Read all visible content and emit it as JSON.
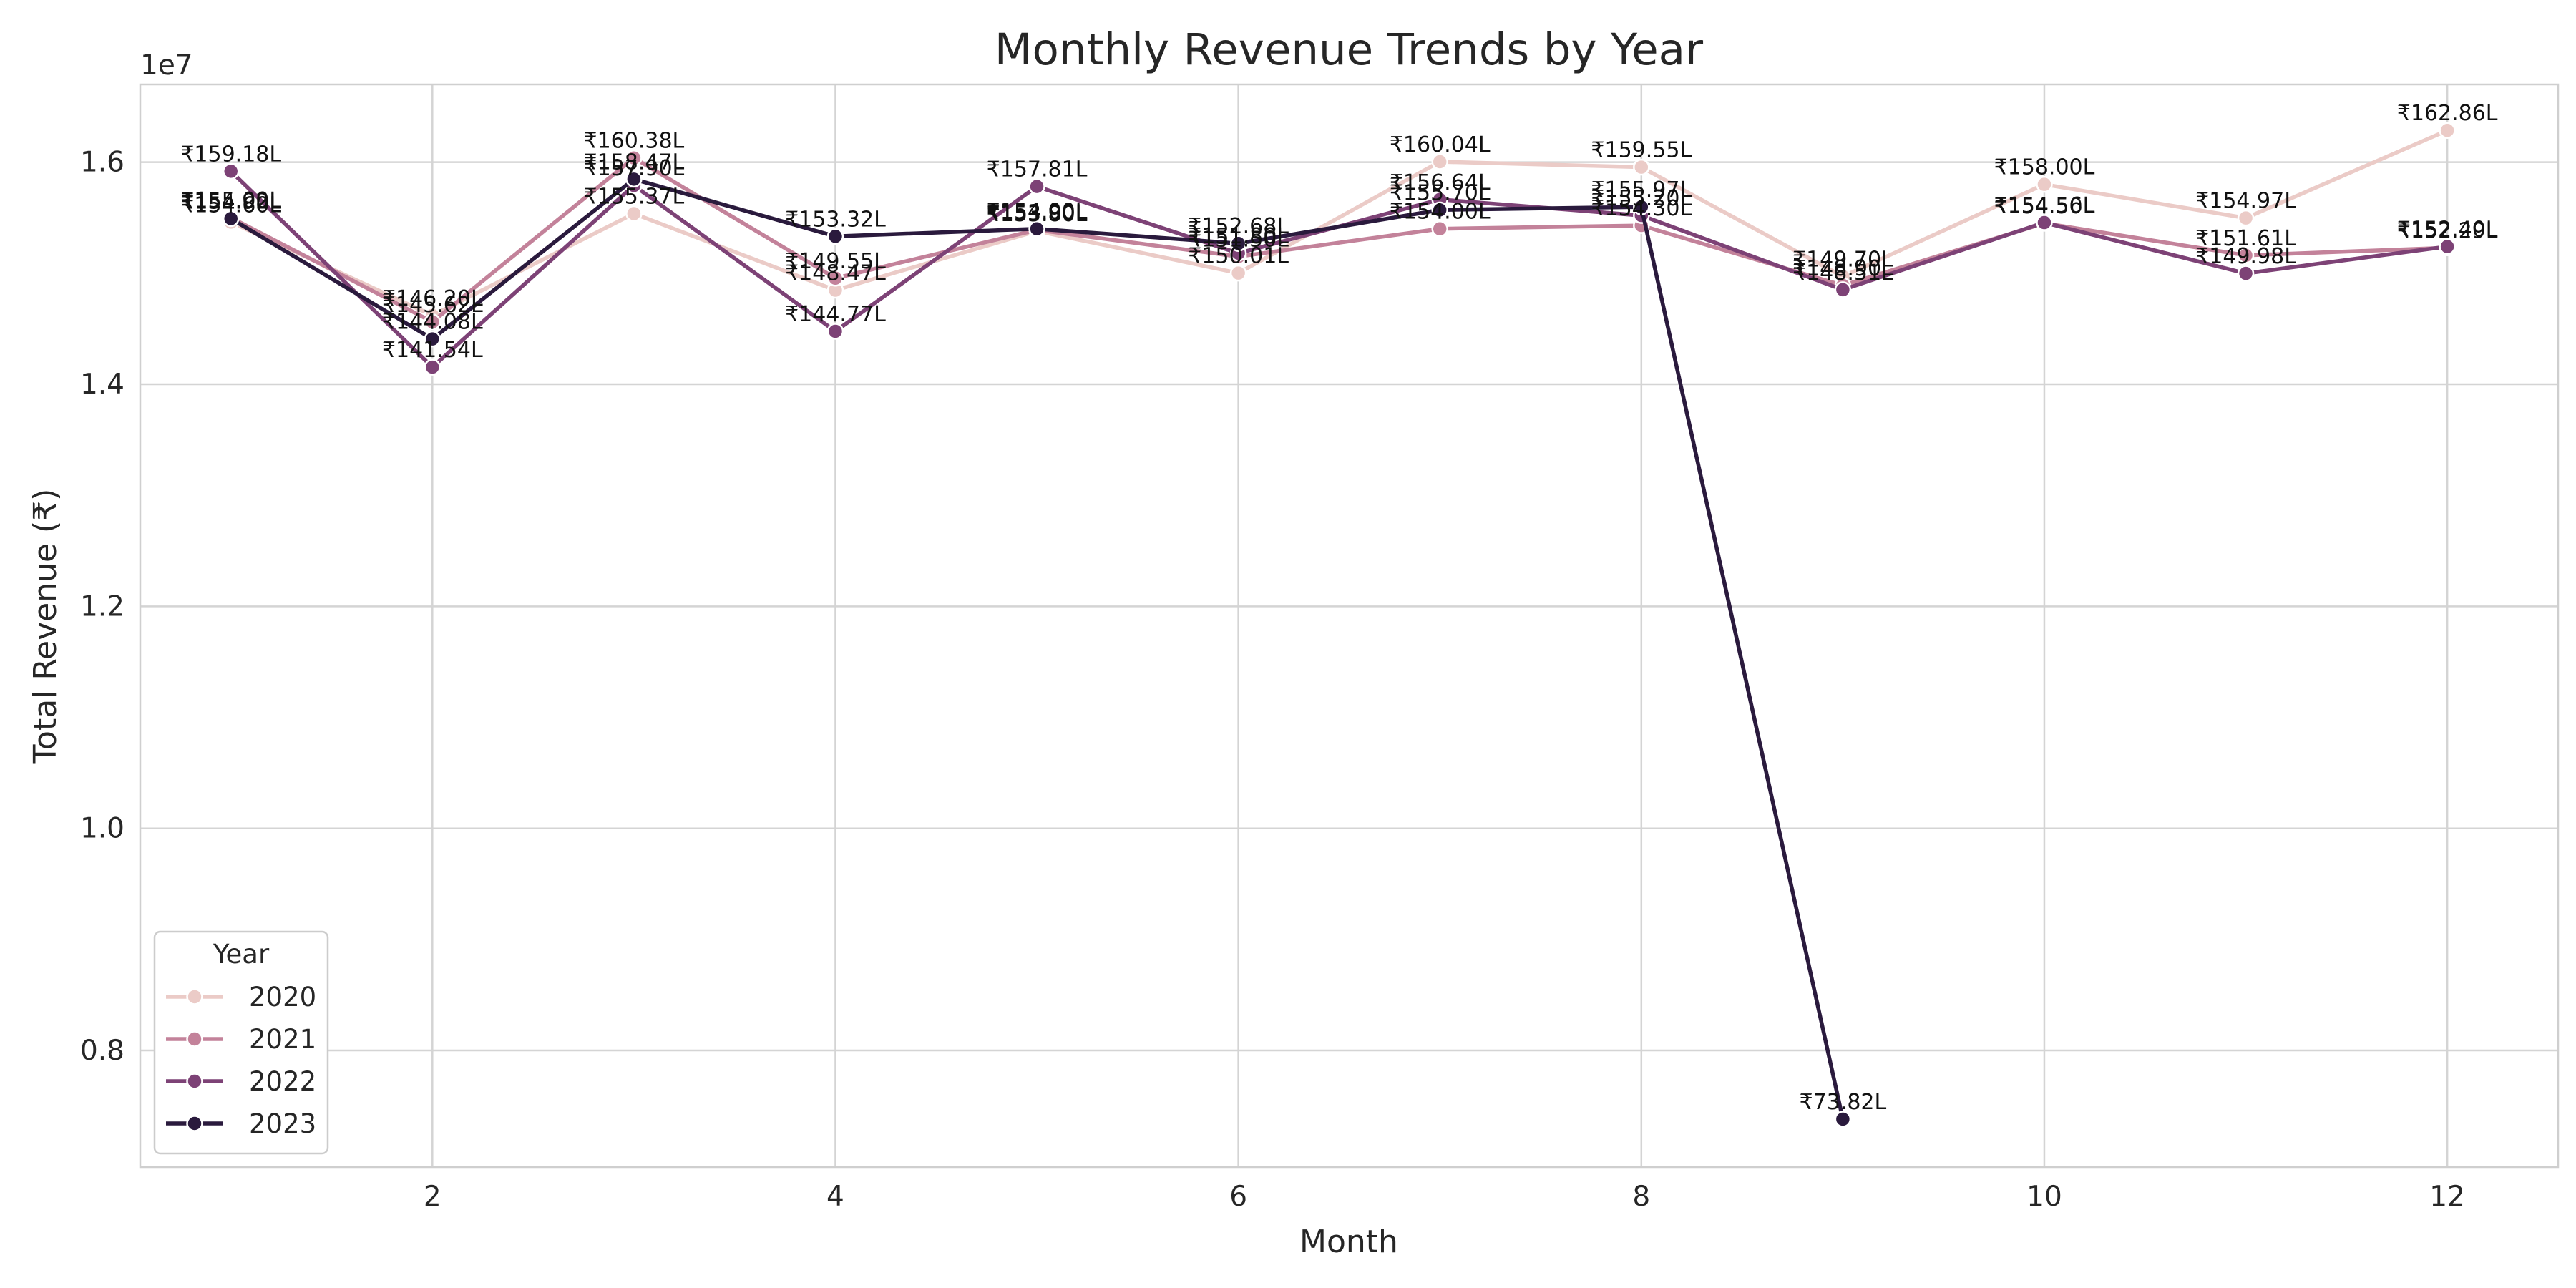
{
  "chart_data": {
    "type": "line",
    "title": "Monthly Revenue Trends by Year",
    "xlabel": "Month",
    "ylabel": "Total Revenue (₹)",
    "y_offset_label": "1e7",
    "xlim": [
      0.55,
      12.55
    ],
    "ylim": [
      6950000,
      16700000
    ],
    "x_ticks": [
      2,
      4,
      6,
      8,
      10,
      12
    ],
    "y_ticks": [
      8000000,
      10000000,
      12000000,
      14000000,
      16000000
    ],
    "y_tick_labels": [
      "0.8",
      "1.0",
      "1.2",
      "1.4",
      "1.6"
    ],
    "grid": true,
    "legend": {
      "title": "Year",
      "placement": "lower-left"
    },
    "x": [
      1,
      2,
      3,
      4,
      5,
      6,
      7,
      8,
      9,
      10,
      11,
      12
    ],
    "series": [
      {
        "name": "2020",
        "color": "#ebcbc7",
        "values": [
          15460000,
          14620000,
          15537000,
          14847000,
          15380000,
          15001000,
          16004000,
          15955000,
          14970000,
          15800000,
          15497000,
          16286000
        ],
        "labels": [
          "₹154.60L",
          "₹146.20L",
          "₹155.37L",
          "₹148.47L",
          "₹153.80L",
          "₹150.01L",
          "₹160.04L",
          "₹159.55L",
          "₹149.70L",
          "₹158.00L",
          "₹154.97L",
          "₹162.86L"
        ]
      },
      {
        "name": "2021",
        "color": "#c3829a",
        "values": [
          15500000,
          14562000,
          16038000,
          14955000,
          15390000,
          15150000,
          15400000,
          15430000,
          14890000,
          15450000,
          15161000,
          15229000
        ],
        "labels": [
          "₹155.00L",
          "₹145.62L",
          "₹160.38L",
          "₹149.55L",
          "₹153.90L",
          "₹151.50L",
          "₹154.00L",
          "₹154.30L",
          "₹148.90L",
          "₹154.50L",
          "₹151.61L",
          "₹152.29L"
        ]
      },
      {
        "name": "2022",
        "color": "#7d4276",
        "values": [
          15918000,
          14154000,
          15790000,
          14477000,
          15781000,
          15180000,
          15664000,
          15520000,
          14851000,
          15456000,
          14998000,
          15240000
        ],
        "labels": [
          "₹159.18L",
          "₹141.54L",
          "₹157.90L",
          "₹144.77L",
          "₹157.81L",
          "₹151.80L",
          "₹156.64L",
          "₹155.20L",
          "₹148.51L",
          "₹154.56L",
          "₹149.98L",
          "₹152.40L"
        ]
      },
      {
        "name": "2023",
        "color": "#2a1a3d",
        "values": [
          15492000,
          14408000,
          15847000,
          15332000,
          15400000,
          15268000,
          15570000,
          15597000,
          7382000,
          null,
          null,
          null
        ],
        "labels": [
          "₹154.92L",
          "₹144.08L",
          "₹158.47L",
          "₹153.32L",
          "₹154.00L",
          "₹152.68L",
          "₹155.70L",
          "₹155.97L",
          "₹73.82L",
          null,
          null,
          null
        ]
      }
    ]
  }
}
